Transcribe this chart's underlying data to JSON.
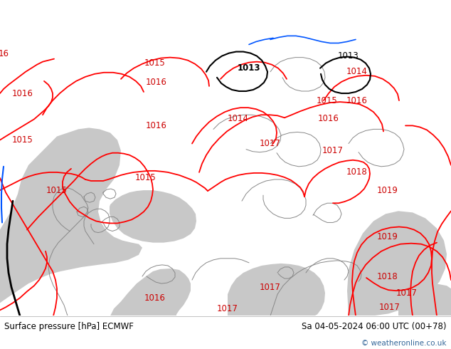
{
  "title_left": "Surface pressure [hPa] ECMWF",
  "title_right": "Sa 04-05-2024 06:00 UTC (00+78)",
  "copyright": "© weatheronline.co.uk",
  "bg_color_land": "#c8f09c",
  "bg_color_sea": "#c8c8c8",
  "bg_color_bottom": "#ffffff",
  "contour_color_red": "#ff0000",
  "contour_color_black": "#000000",
  "contour_color_blue": "#0055ff",
  "contour_color_gray": "#888888",
  "text_color_black": "#000000",
  "text_color_red": "#cc0000",
  "figsize": [
    6.34,
    4.9
  ],
  "dpi": 100
}
